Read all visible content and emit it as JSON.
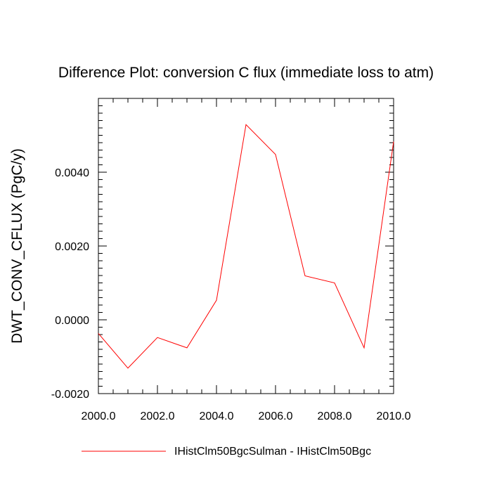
{
  "chart_data": {
    "type": "line",
    "title": "Difference Plot: conversion C flux (immediate loss to atm)",
    "xlabel": "",
    "ylabel": "DWT_CONV_CFLUX  (PgC/y)",
    "xlim": [
      2000,
      2010
    ],
    "ylim": [
      -0.002,
      0.006
    ],
    "x_ticks": [
      2000,
      2002,
      2004,
      2006,
      2008,
      2010
    ],
    "x_tick_labels": [
      "2000.0",
      "2002.0",
      "2004.0",
      "2006.0",
      "2008.0",
      "2010.0"
    ],
    "y_ticks": [
      -0.002,
      0.0,
      0.002,
      0.004
    ],
    "y_tick_labels": [
      "-0.0020",
      "0.0000",
      "0.0020",
      "0.0040"
    ],
    "x_minor_step": 0.5,
    "y_minor_step": 0.0002,
    "grid": false,
    "legend_position": "bottom-center",
    "series": [
      {
        "name": "IHistClm50BgcSulman - IHistClm50Bgc",
        "color": "#ff0000",
        "x": [
          2000,
          2001,
          2002,
          2003,
          2004,
          2005,
          2006,
          2007,
          2008,
          2009,
          2010
        ],
        "values": [
          -0.00037,
          -0.00131,
          -0.00048,
          -0.00076,
          0.00053,
          0.00529,
          0.00448,
          0.00119,
          0.001,
          -0.00076,
          0.00483
        ]
      }
    ]
  }
}
